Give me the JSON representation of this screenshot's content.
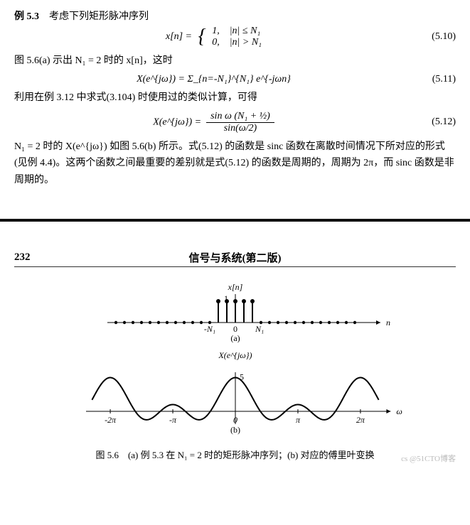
{
  "example": {
    "label": "例 5.3",
    "intro": "考虑下列矩形脉冲序列"
  },
  "eq1": {
    "lhs": "x[n] =",
    "cases": [
      [
        "1,",
        "|n| ≤ N₁"
      ],
      [
        "0,",
        "|n| > N₁"
      ]
    ],
    "num": "(5.10)"
  },
  "line1": "图 5.6(a) 示出 N₁ = 2 时的 x[n]，这时",
  "eq2": {
    "body": "X(e^{jω}) =  Σ_{n=-N₁}^{N₁}  e^{-jωn}",
    "num": "(5.11)"
  },
  "line2": "利用在例 3.12 中求式(3.104) 时使用过的类似计算，可得",
  "eq3": {
    "lhs": "X(e^{jω}) =",
    "frac_top": "sin ω (N₁ + ½)",
    "frac_bot": "sin(ω/2)",
    "num": "(5.12)"
  },
  "para": "N₁ = 2 时的 X(e^{jω}) 如图 5.6(b) 所示。式(5.12) 的函数是 sinc 函数在离散时间情况下所对应的形式(见例 4.4)。这两个函数之间最重要的差别就是式(5.12) 的函数是周期的，周期为 2π，而 sinc 函数是非周期的。",
  "header": {
    "page": "232",
    "title": "信号与系统(第二版)"
  },
  "fig": {
    "labels": {
      "ylab_a": "x[n]",
      "one": "1",
      "xaxis_a": "n",
      "sub_a": "(a)",
      "neg_n1": "-N₁",
      "zero": "0",
      "n1": "N₁",
      "ylab_b": "X(e^{jω})",
      "five": "5",
      "xaxis_b": "ω",
      "sub_b": "(b)",
      "xticks_b": [
        "-2π",
        "-π",
        "0",
        "π",
        "2π"
      ]
    },
    "colors": {
      "stroke": "#000",
      "dot": "#000"
    },
    "stem_x": [
      -2,
      -1,
      0,
      1,
      2
    ],
    "dots_x": [
      -14,
      -13,
      -12,
      -11,
      -10,
      -9,
      -8,
      -7,
      -6,
      -5,
      -4,
      -3,
      3,
      4,
      5,
      6,
      7,
      8,
      9,
      10,
      11,
      12,
      13,
      14
    ],
    "sinc": {
      "N1": 2,
      "xmin": -7.2,
      "xmax": 7.2,
      "peak": 5
    }
  },
  "caption": "图 5.6　(a) 例 5.3 在 N₁ = 2 时的矩形脉冲序列；(b) 对应的傅里叶变换",
  "watermark": "cs @51CTO博客"
}
